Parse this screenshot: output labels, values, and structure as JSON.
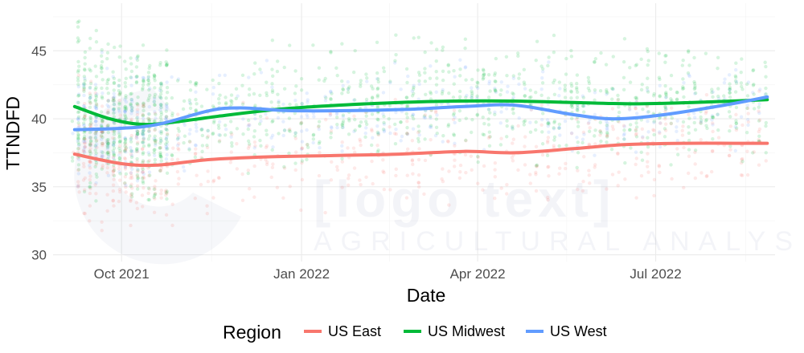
{
  "chart_data": {
    "type": "scatter",
    "title": "",
    "xlabel": "Date",
    "ylabel": "TTNDFD",
    "x_range": [
      "2021-08-27",
      "2022-08-31"
    ],
    "ylim": [
      29.5,
      48.5
    ],
    "x_ticks": [
      {
        "date": "2021-10-01",
        "label": "Oct 2021"
      },
      {
        "date": "2022-01-01",
        "label": "Jan 2022"
      },
      {
        "date": "2022-04-01",
        "label": "Apr 2022"
      },
      {
        "date": "2022-07-01",
        "label": "Jul 2022"
      }
    ],
    "y_ticks": [
      30,
      35,
      40,
      45
    ],
    "grid": true,
    "legend": {
      "title": "Region",
      "position": "bottom"
    },
    "watermark": {
      "line1": "[logo text]",
      "line2": "AGRICULTURAL ANALYSIS"
    },
    "series": [
      {
        "name": "US East",
        "color": "#F8766D",
        "smooth": [
          {
            "x": "2021-09-07",
            "y": 37.4
          },
          {
            "x": "2021-10-01",
            "y": 36.7
          },
          {
            "x": "2021-10-20",
            "y": 36.6
          },
          {
            "x": "2021-11-15",
            "y": 37.0
          },
          {
            "x": "2021-12-15",
            "y": 37.2
          },
          {
            "x": "2022-01-20",
            "y": 37.3
          },
          {
            "x": "2022-02-20",
            "y": 37.4
          },
          {
            "x": "2022-03-25",
            "y": 37.6
          },
          {
            "x": "2022-04-20",
            "y": 37.5
          },
          {
            "x": "2022-05-20",
            "y": 37.8
          },
          {
            "x": "2022-06-15",
            "y": 38.1
          },
          {
            "x": "2022-07-15",
            "y": 38.2
          },
          {
            "x": "2022-08-10",
            "y": 38.2
          },
          {
            "x": "2022-08-27",
            "y": 38.2
          }
        ],
        "scatter": {
          "center": 37.2,
          "spread": 3.2,
          "weight": 0.26
        }
      },
      {
        "name": "US Midwest",
        "color": "#00BA38",
        "smooth": [
          {
            "x": "2021-09-07",
            "y": 40.9
          },
          {
            "x": "2021-09-25",
            "y": 40.0
          },
          {
            "x": "2021-10-10",
            "y": 39.6
          },
          {
            "x": "2021-10-25",
            "y": 39.7
          },
          {
            "x": "2021-11-20",
            "y": 40.2
          },
          {
            "x": "2021-12-20",
            "y": 40.7
          },
          {
            "x": "2022-01-20",
            "y": 41.0
          },
          {
            "x": "2022-02-20",
            "y": 41.2
          },
          {
            "x": "2022-03-20",
            "y": 41.3
          },
          {
            "x": "2022-04-20",
            "y": 41.3
          },
          {
            "x": "2022-05-20",
            "y": 41.2
          },
          {
            "x": "2022-06-20",
            "y": 41.1
          },
          {
            "x": "2022-07-20",
            "y": 41.2
          },
          {
            "x": "2022-08-27",
            "y": 41.4
          }
        ],
        "scatter": {
          "center": 41.3,
          "spread": 3.6,
          "weight": 0.52
        }
      },
      {
        "name": "US West",
        "color": "#619CFF",
        "smooth": [
          {
            "x": "2021-09-07",
            "y": 39.2
          },
          {
            "x": "2021-10-01",
            "y": 39.3
          },
          {
            "x": "2021-10-20",
            "y": 39.6
          },
          {
            "x": "2021-11-15",
            "y": 40.6
          },
          {
            "x": "2021-12-01",
            "y": 40.8
          },
          {
            "x": "2021-12-25",
            "y": 40.6
          },
          {
            "x": "2022-01-25",
            "y": 40.6
          },
          {
            "x": "2022-02-25",
            "y": 40.7
          },
          {
            "x": "2022-03-25",
            "y": 40.9
          },
          {
            "x": "2022-04-20",
            "y": 41.0
          },
          {
            "x": "2022-05-20",
            "y": 40.3
          },
          {
            "x": "2022-06-10",
            "y": 40.0
          },
          {
            "x": "2022-07-05",
            "y": 40.3
          },
          {
            "x": "2022-08-05",
            "y": 41.0
          },
          {
            "x": "2022-08-27",
            "y": 41.6
          }
        ],
        "scatter": {
          "center": 40.2,
          "spread": 2.8,
          "weight": 0.22
        }
      }
    ]
  }
}
